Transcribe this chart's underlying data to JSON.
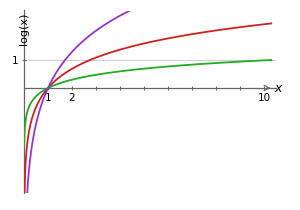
{
  "xlabel": "x",
  "ylabel": "log(x)",
  "xlim": [
    0.0,
    10.5
  ],
  "ylim": [
    -3.8,
    2.8
  ],
  "x_ticks": [
    1,
    2,
    3,
    4,
    5,
    6,
    7,
    8,
    9,
    10
  ],
  "x_tick_labels": [
    "1",
    "2",
    "",
    "",
    "",
    "",
    "",
    "",
    "",
    "10"
  ],
  "y_ticks": [
    1
  ],
  "y_tick_labels": [
    "1"
  ],
  "curves": [
    {
      "base": 2.718281828,
      "color": "#cc2222"
    },
    {
      "base": 10,
      "color": "#22aa22"
    },
    {
      "base": 1.7,
      "color": "#9933cc"
    }
  ],
  "bg_color": "#ffffff",
  "axis_color": "#666666",
  "grid_line_color": "#cccccc",
  "linewidth": 1.3,
  "x_start": 0.008
}
